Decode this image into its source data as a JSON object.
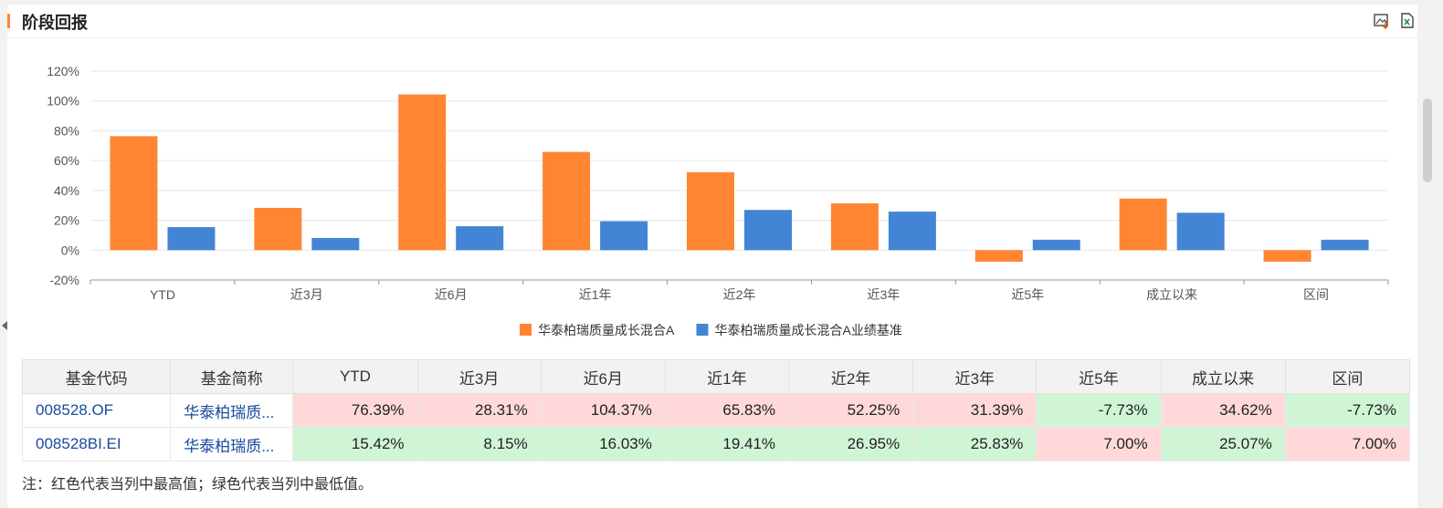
{
  "header": {
    "title": "阶段回报",
    "image_icon": "image-download-icon",
    "excel_icon": "excel-export-icon"
  },
  "colors": {
    "fund": "#ff8533",
    "benchmark": "#4285d4",
    "accent": "#ff8533",
    "high": "#ffd9d9",
    "low": "#cff5d4"
  },
  "chart_data": {
    "type": "bar",
    "categories": [
      "YTD",
      "近3月",
      "近6月",
      "近1年",
      "近2年",
      "近3年",
      "近5年",
      "成立以来",
      "区间"
    ],
    "series": [
      {
        "name": "华泰柏瑞质量成长混合A",
        "values": [
          76.39,
          28.31,
          104.37,
          65.83,
          52.25,
          31.39,
          -7.73,
          34.62,
          -7.73
        ]
      },
      {
        "name": "华泰柏瑞质量成长混合A业绩基准",
        "values": [
          15.42,
          8.15,
          16.03,
          19.41,
          26.95,
          25.83,
          7.0,
          25.07,
          7.0
        ]
      }
    ],
    "yticks": [
      "120%",
      "100%",
      "80%",
      "60%",
      "40%",
      "20%",
      "0%",
      "-20%"
    ],
    "ylim": [
      -20,
      120
    ],
    "grid": true,
    "legend": "bottom-center"
  },
  "table": {
    "headers": [
      "基金代码",
      "基金简称",
      "YTD",
      "近3月",
      "近6月",
      "近1年",
      "近2年",
      "近3年",
      "近5年",
      "成立以来",
      "区间"
    ],
    "rows": [
      {
        "code": "008528.OF",
        "name": "华泰柏瑞质...",
        "values": [
          "76.39%",
          "28.31%",
          "104.37%",
          "65.83%",
          "52.25%",
          "31.39%",
          "-7.73%",
          "34.62%",
          "-7.73%"
        ],
        "marks": [
          "hi",
          "hi",
          "hi",
          "hi",
          "hi",
          "hi",
          "lo",
          "hi",
          "lo"
        ]
      },
      {
        "code": "008528BI.EI",
        "name": "华泰柏瑞质...",
        "values": [
          "15.42%",
          "8.15%",
          "16.03%",
          "19.41%",
          "26.95%",
          "25.83%",
          "7.00%",
          "25.07%",
          "7.00%"
        ],
        "marks": [
          "lo",
          "lo",
          "lo",
          "lo",
          "lo",
          "lo",
          "hi",
          "lo",
          "hi"
        ]
      }
    ]
  },
  "note": "注：红色代表当列中最高值；绿色代表当列中最低值。"
}
